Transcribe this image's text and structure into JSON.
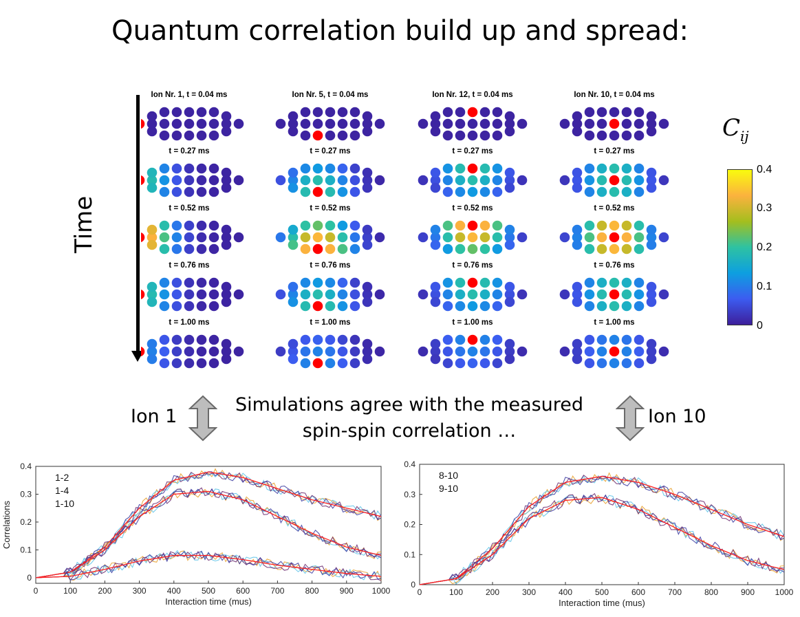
{
  "title": "Quantum correlation build up and spread:",
  "time_label": "Time",
  "colorbar": {
    "symbol": "C",
    "subscript": "ij",
    "ticks": [
      "0.4",
      "0.3",
      "0.2",
      "0.1",
      "0"
    ],
    "gradient": [
      "#f9fb0e",
      "#fbb23e",
      "#a4be1e",
      "#2ec2a2",
      "#0d9fe0",
      "#3c5cf0",
      "#3d1f9b"
    ]
  },
  "panel_grid": {
    "columns": [
      {
        "label": "Ion Nr. 1, t = 0.04 ms",
        "ion": 1
      },
      {
        "label": "Ion Nr. 5, t = 0.04 ms",
        "ion": 5
      },
      {
        "label": "Ion Nr. 12, t = 0.04 ms",
        "ion": 12
      },
      {
        "label": "Ion Nr. 10, t = 0.04 ms",
        "ion": 10
      }
    ],
    "row_labels": [
      "t = 0.27 ms",
      "t = 0.52 ms",
      "t = 0.76 ms",
      "t = 1.00 ms"
    ]
  },
  "middle_text": {
    "line1": "Simulations agree with the measured",
    "line2": "spin-spin correlation …"
  },
  "left_arrow_label": "Ion 1",
  "right_arrow_label": "Ion 10",
  "chart_data": [
    {
      "type": "line",
      "title": "",
      "xlabel": "Interaction time (mus)",
      "ylabel": "Correlations",
      "xlim": [
        0,
        1000
      ],
      "ylim": [
        -0.02,
        0.4
      ],
      "xticks": [
        "0",
        "100",
        "200",
        "300",
        "400",
        "500",
        "600",
        "700",
        "800",
        "900",
        "1000"
      ],
      "yticks": [
        "0",
        "0.1",
        "0.2",
        "0.3",
        "0.4"
      ],
      "legend": [
        "1-2",
        "1-4",
        "1-10"
      ],
      "series": [
        {
          "name": "1-2 fit",
          "x": [
            0,
            100,
            200,
            300,
            400,
            500,
            600,
            700,
            800,
            900,
            1000
          ],
          "values": [
            0,
            0.02,
            0.11,
            0.25,
            0.35,
            0.38,
            0.36,
            0.32,
            0.28,
            0.25,
            0.22
          ]
        },
        {
          "name": "1-4 fit",
          "x": [
            0,
            100,
            200,
            300,
            400,
            500,
            600,
            700,
            800,
            900,
            1000
          ],
          "values": [
            0,
            0.02,
            0.1,
            0.22,
            0.3,
            0.31,
            0.28,
            0.22,
            0.16,
            0.11,
            0.08
          ]
        },
        {
          "name": "1-10 fit",
          "x": [
            0,
            100,
            200,
            300,
            400,
            500,
            600,
            700,
            800,
            900,
            1000
          ],
          "values": [
            0,
            0.005,
            0.03,
            0.06,
            0.08,
            0.08,
            0.065,
            0.045,
            0.03,
            0.015,
            0.005
          ]
        }
      ]
    },
    {
      "type": "line",
      "title": "",
      "xlabel": "Interaction time (mus)",
      "ylabel": "",
      "xlim": [
        0,
        1000
      ],
      "ylim": [
        0,
        0.4
      ],
      "xticks": [
        "0",
        "100",
        "200",
        "300",
        "400",
        "500",
        "600",
        "700",
        "800",
        "900",
        "1000"
      ],
      "yticks": [
        "0",
        "0.1",
        "0.2",
        "0.3",
        "0.4"
      ],
      "legend": [
        "8-10",
        "9-10"
      ],
      "series": [
        {
          "name": "8-10 fit",
          "x": [
            0,
            100,
            200,
            300,
            400,
            500,
            600,
            700,
            800,
            900,
            1000
          ],
          "values": [
            0,
            0.02,
            0.12,
            0.26,
            0.34,
            0.36,
            0.34,
            0.3,
            0.25,
            0.2,
            0.16
          ]
        },
        {
          "name": "9-10 fit",
          "x": [
            0,
            100,
            200,
            300,
            400,
            500,
            600,
            700,
            800,
            900,
            1000
          ],
          "values": [
            0,
            0.02,
            0.1,
            0.22,
            0.28,
            0.29,
            0.25,
            0.19,
            0.13,
            0.08,
            0.05
          ]
        }
      ]
    }
  ]
}
